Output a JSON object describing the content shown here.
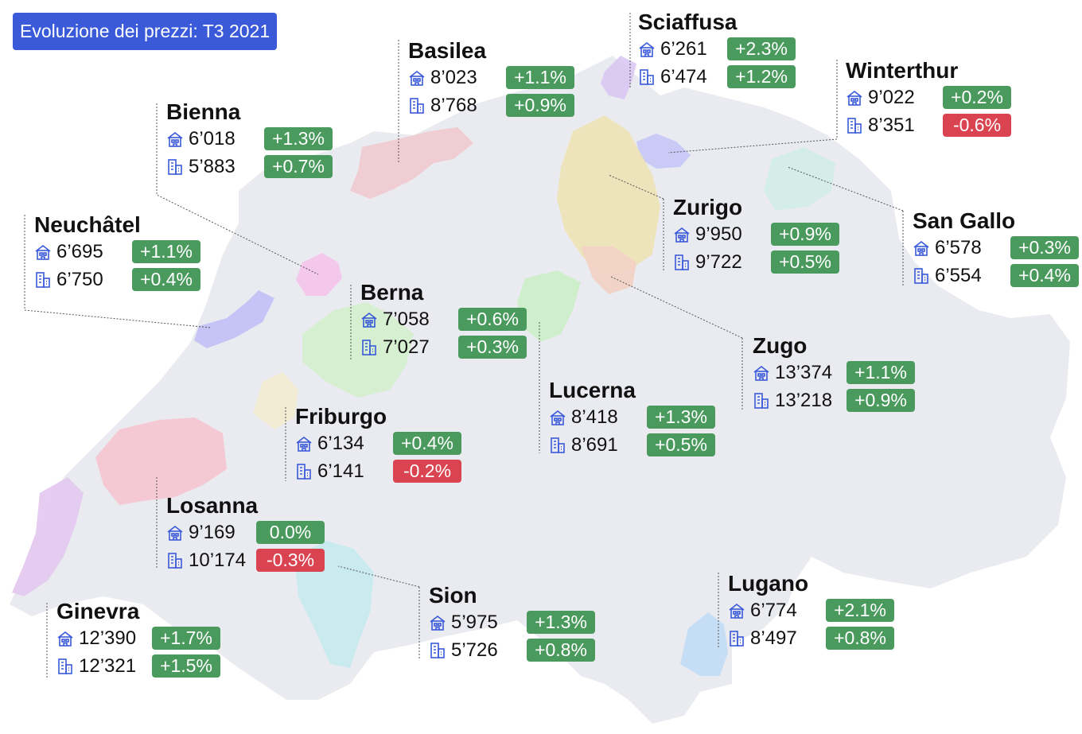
{
  "title": "Evoluzione dei prezzi: T3 2021",
  "icons": {
    "row1": "house-icon",
    "row2": "apartment-building-icon"
  },
  "colors": {
    "badge": "#3a5ad9",
    "positive": "#4a9a5e",
    "negative": "#d94450",
    "icon": "#3a5ad9",
    "map_base": "#eaebf0",
    "leader_line": "#555555"
  },
  "cities": [
    {
      "id": "sciaffusa",
      "name": "Sciaffusa",
      "house": "6’261",
      "house_change": "+2.3%",
      "apartment": "6’474",
      "apartment_change": "+1.2%"
    },
    {
      "id": "basilea",
      "name": "Basilea",
      "house": "8’023",
      "house_change": "+1.1%",
      "apartment": "8’768",
      "apartment_change": "+0.9%"
    },
    {
      "id": "winterthur",
      "name": "Winterthur",
      "house": "9’022",
      "house_change": "+0.2%",
      "apartment": "8’351",
      "apartment_change": "-0.6%"
    },
    {
      "id": "bienna",
      "name": "Bienna",
      "house": "6’018",
      "house_change": "+1.3%",
      "apartment": "5’883",
      "apartment_change": "+0.7%"
    },
    {
      "id": "neuchatel",
      "name": "Neuchâtel",
      "house": "6’695",
      "house_change": "+1.1%",
      "apartment": "6’750",
      "apartment_change": "+0.4%"
    },
    {
      "id": "zurigo",
      "name": "Zurigo",
      "house": "9’950",
      "house_change": "+0.9%",
      "apartment": "9’722",
      "apartment_change": "+0.5%"
    },
    {
      "id": "sangallo",
      "name": "San Gallo",
      "house": "6’578",
      "house_change": "+0.3%",
      "apartment": "6’554",
      "apartment_change": "+0.4%"
    },
    {
      "id": "berna",
      "name": "Berna",
      "house": "7’058",
      "house_change": "+0.6%",
      "apartment": "7’027",
      "apartment_change": "+0.3%"
    },
    {
      "id": "zugo",
      "name": "Zugo",
      "house": "13’374",
      "house_change": "+1.1%",
      "apartment": "13’218",
      "apartment_change": "+0.9%"
    },
    {
      "id": "lucerna",
      "name": "Lucerna",
      "house": "8’418",
      "house_change": "+1.3%",
      "apartment": "8’691",
      "apartment_change": "+0.5%"
    },
    {
      "id": "friburgo",
      "name": "Friburgo",
      "house": "6’134",
      "house_change": "+0.4%",
      "apartment": "6’141",
      "apartment_change": "-0.2%"
    },
    {
      "id": "losanna",
      "name": "Losanna",
      "house": "9’169",
      "house_change": "0.0%",
      "apartment": "10’174",
      "apartment_change": "-0.3%"
    },
    {
      "id": "sion",
      "name": "Sion",
      "house": "5’975",
      "house_change": "+1.3%",
      "apartment": "5’726",
      "apartment_change": "+0.8%"
    },
    {
      "id": "lugano",
      "name": "Lugano",
      "house": "6’774",
      "house_change": "+2.1%",
      "apartment": "8’497",
      "apartment_change": "+0.8%"
    },
    {
      "id": "ginevra",
      "name": "Ginevra",
      "house": "12’390",
      "house_change": "+1.7%",
      "apartment": "12’321",
      "apartment_change": "+1.5%"
    }
  ]
}
